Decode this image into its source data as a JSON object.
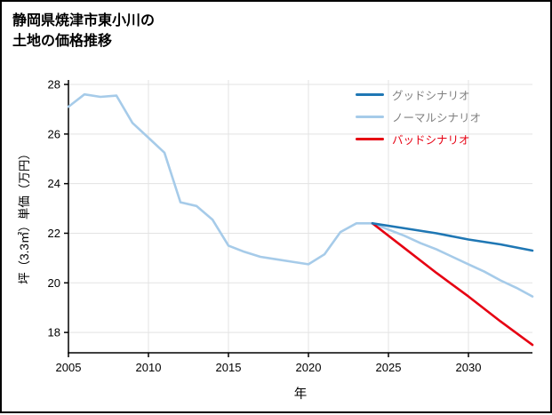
{
  "page": {
    "title_line1": "静岡県焼津市東小川の",
    "title_line2": "土地の価格推移"
  },
  "chart_data": {
    "type": "line",
    "title": "静岡県焼津市東小川の土地の価格推移",
    "xlabel": "年",
    "ylabel": "坪（3.3㎡）単価（万円）",
    "xlim": [
      2005,
      2034
    ],
    "ylim": [
      17.18,
      28.18
    ],
    "xticks": [
      2005,
      2010,
      2015,
      2020,
      2025,
      2030
    ],
    "yticks": [
      18,
      20,
      22,
      24,
      26,
      28
    ],
    "grid": true,
    "grid_color": "#e3e3e3",
    "axis_color": "#000000",
    "legend_position": "top-right",
    "draw_order": [
      1,
      2,
      0
    ],
    "series": [
      {
        "name": "グッドシナリオ",
        "color": "#1f77b4",
        "label_color": "#7f7f7f",
        "x": [
          2024,
          2026,
          2028,
          2030,
          2032,
          2034
        ],
        "y": [
          22.4,
          22.2,
          22.0,
          21.75,
          21.55,
          21.3
        ]
      },
      {
        "name": "ノーマルシナリオ",
        "color": "#a6cbe9",
        "label_color": "#7f7f7f",
        "x": [
          2005,
          2006,
          2007,
          2008,
          2009,
          2010,
          2011,
          2012,
          2013,
          2014,
          2015,
          2016,
          2017,
          2018,
          2019,
          2020,
          2021,
          2022,
          2023,
          2024,
          2025,
          2026,
          2027,
          2028,
          2029,
          2030,
          2031,
          2032,
          2033,
          2034
        ],
        "y": [
          27.1,
          27.6,
          27.5,
          27.55,
          26.45,
          25.85,
          25.25,
          23.25,
          23.1,
          22.55,
          21.5,
          21.25,
          21.05,
          20.95,
          20.85,
          20.75,
          21.15,
          22.05,
          22.4,
          22.4,
          22.15,
          21.9,
          21.6,
          21.35,
          21.05,
          20.75,
          20.45,
          20.1,
          19.8,
          19.45
        ]
      },
      {
        "name": "バッドシナリオ",
        "color": "#e60012",
        "label_color": "#e60012",
        "x": [
          2024,
          2026,
          2028,
          2030,
          2032,
          2034
        ],
        "y": [
          22.4,
          21.4,
          20.4,
          19.45,
          18.45,
          17.5
        ]
      }
    ]
  }
}
